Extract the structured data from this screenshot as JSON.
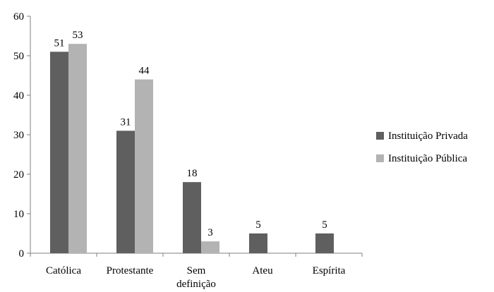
{
  "chart_data": {
    "type": "bar",
    "title": "",
    "xlabel": "",
    "ylabel": "",
    "ylim": [
      0,
      60
    ],
    "yticks": [
      "0",
      "10",
      "20",
      "30",
      "40",
      "50",
      "60"
    ],
    "categories": [
      [
        "Católica"
      ],
      [
        "Protestante"
      ],
      [
        "Sem",
        "definição"
      ],
      [
        "Ateu"
      ],
      [
        "Espírita"
      ]
    ],
    "series": [
      {
        "name": "Instituição Privada",
        "color": "#5f5f5f",
        "values": [
          51,
          31,
          18,
          5,
          5
        ],
        "labels": [
          "51",
          "31",
          "18",
          "5",
          "5"
        ]
      },
      {
        "name": "Instituição Pública",
        "color": "#b3b3b3",
        "values": [
          53,
          44,
          3,
          0,
          0
        ],
        "labels": [
          "53",
          "44",
          "3",
          "",
          ""
        ]
      }
    ],
    "legend_position": "right",
    "grid": false
  }
}
